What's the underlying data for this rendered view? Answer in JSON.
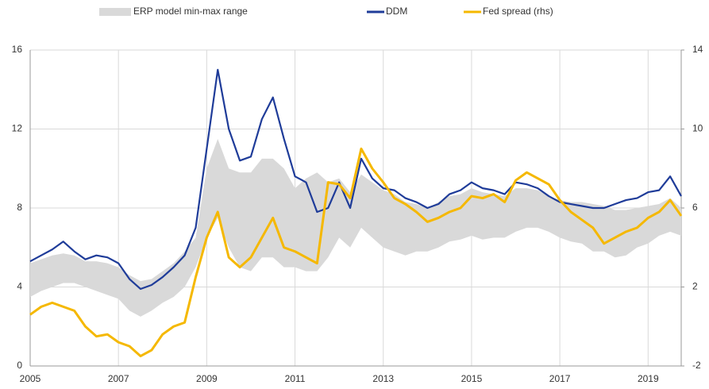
{
  "chart_data": {
    "type": "line",
    "x": [
      2005,
      2005.25,
      2005.5,
      2005.75,
      2006,
      2006.25,
      2006.5,
      2006.75,
      2007,
      2007.25,
      2007.5,
      2007.75,
      2008,
      2008.25,
      2008.5,
      2008.75,
      2009,
      2009.25,
      2009.5,
      2009.75,
      2010,
      2010.25,
      2010.5,
      2010.75,
      2011,
      2011.25,
      2011.5,
      2011.75,
      2012,
      2012.25,
      2012.5,
      2012.75,
      2013,
      2013.25,
      2013.5,
      2013.75,
      2014,
      2014.25,
      2014.5,
      2014.75,
      2015,
      2015.25,
      2015.5,
      2015.75,
      2016,
      2016.25,
      2016.5,
      2016.75,
      2017,
      2017.25,
      2017.5,
      2017.75,
      2018,
      2018.25,
      2018.5,
      2018.75,
      2019,
      2019.25,
      2019.5,
      2019.75
    ],
    "range": {
      "name": "ERP model min-max range",
      "color": "#d9d9d9",
      "min": [
        3.5,
        3.8,
        4.0,
        4.2,
        4.2,
        4.0,
        3.8,
        3.6,
        3.4,
        2.8,
        2.5,
        2.8,
        3.2,
        3.5,
        4.0,
        5.0,
        6.5,
        7.5,
        6.0,
        5.0,
        4.8,
        5.5,
        5.5,
        5.0,
        5.0,
        4.8,
        4.8,
        5.5,
        6.5,
        6.0,
        7.0,
        6.5,
        6.0,
        5.8,
        5.6,
        5.8,
        5.8,
        6.0,
        6.3,
        6.4,
        6.6,
        6.4,
        6.5,
        6.5,
        6.8,
        7.0,
        7.0,
        6.8,
        6.5,
        6.3,
        6.2,
        5.8,
        5.8,
        5.5,
        5.6,
        6.0,
        6.2,
        6.6,
        6.8,
        6.6
      ],
      "max": [
        5.2,
        5.4,
        5.6,
        5.7,
        5.6,
        5.3,
        5.3,
        5.2,
        5.0,
        4.6,
        4.3,
        4.4,
        4.8,
        5.2,
        5.8,
        6.5,
        10.0,
        11.5,
        10.0,
        9.8,
        9.8,
        10.5,
        10.5,
        10.0,
        9.0,
        9.5,
        9.8,
        9.3,
        9.5,
        8.8,
        9.7,
        9.3,
        8.9,
        8.7,
        8.3,
        8.2,
        8.0,
        8.3,
        8.6,
        8.7,
        9.0,
        8.8,
        8.7,
        8.6,
        9.0,
        9.0,
        8.9,
        8.6,
        8.4,
        8.3,
        8.3,
        8.2,
        8.1,
        7.9,
        7.9,
        8.0,
        8.1,
        8.2,
        8.5,
        8.0
      ]
    },
    "series": [
      {
        "name": "DDM",
        "color": "#1f3c99",
        "axis": "y",
        "values": [
          5.3,
          5.6,
          5.9,
          6.3,
          5.8,
          5.4,
          5.6,
          5.5,
          5.2,
          4.4,
          3.9,
          4.1,
          4.5,
          5.0,
          5.6,
          7.0,
          11.0,
          15.0,
          12.0,
          10.4,
          10.6,
          12.5,
          13.6,
          11.5,
          9.6,
          9.3,
          7.8,
          8.0,
          9.3,
          8.0,
          10.5,
          9.5,
          9.0,
          8.9,
          8.5,
          8.3,
          8.0,
          8.2,
          8.7,
          8.9,
          9.3,
          9.0,
          8.9,
          8.7,
          9.3,
          9.2,
          9.0,
          8.6,
          8.3,
          8.2,
          8.1,
          8.0,
          8.0,
          8.2,
          8.4,
          8.5,
          8.8,
          8.9,
          9.6,
          8.6
        ]
      },
      {
        "name": "Fed spread (rhs)",
        "color": "#f5b800",
        "axis": "y2",
        "values": [
          0.6,
          1.0,
          1.2,
          1.0,
          0.8,
          0.0,
          -0.5,
          -0.4,
          -0.8,
          -1.0,
          -1.5,
          -1.2,
          -0.4,
          0.0,
          0.2,
          2.5,
          4.5,
          5.8,
          3.5,
          3.0,
          3.5,
          4.5,
          5.5,
          4.0,
          3.8,
          3.5,
          3.2,
          7.3,
          7.2,
          6.5,
          9.0,
          8.0,
          7.3,
          6.5,
          6.2,
          5.8,
          5.3,
          5.5,
          5.8,
          6.0,
          6.6,
          6.5,
          6.7,
          6.3,
          7.4,
          7.8,
          7.5,
          7.2,
          6.4,
          5.8,
          5.4,
          5.0,
          4.2,
          4.5,
          4.8,
          5.0,
          5.5,
          5.8,
          6.4,
          5.6
        ]
      }
    ],
    "xlim": [
      2005,
      2019.75
    ],
    "xticks": [
      2005,
      2007,
      2009,
      2011,
      2013,
      2015,
      2017,
      2019
    ],
    "ylim": [
      0,
      16
    ],
    "yticks": [
      0,
      4,
      8,
      12,
      16
    ],
    "y2lim": [
      -2,
      14
    ],
    "y2ticks": [
      -2,
      2,
      6,
      10,
      14
    ],
    "grid": true,
    "legend": "top"
  }
}
